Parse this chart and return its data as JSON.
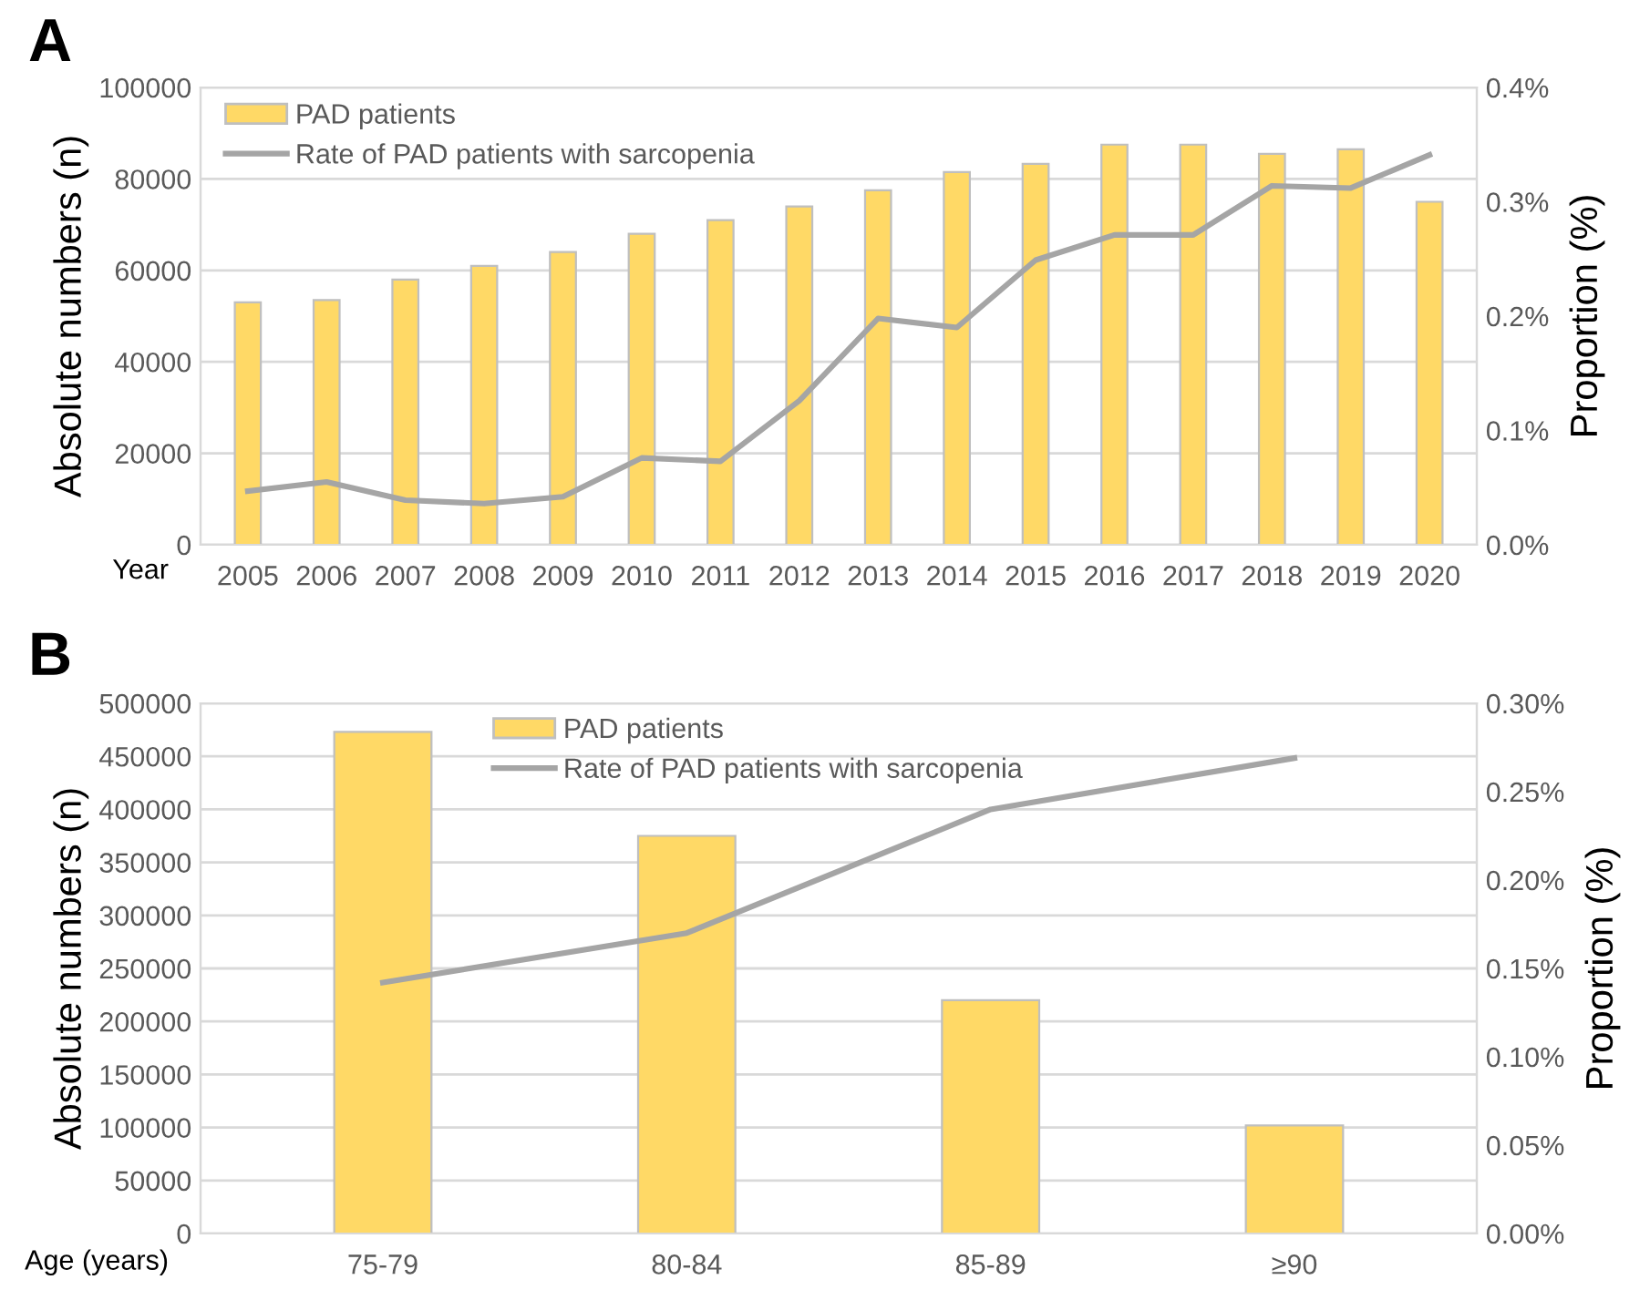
{
  "chart_data": [
    {
      "type": "bar",
      "title": "A",
      "xlabel": "Year",
      "ylabel": "Absolute numbers (n)",
      "y2label": "Proportion (%)",
      "categories": [
        "2005",
        "2006",
        "2007",
        "2008",
        "2009",
        "2010",
        "2011",
        "2012",
        "2013",
        "2014",
        "2015",
        "2016",
        "2017",
        "2018",
        "2019",
        "2020"
      ],
      "series": [
        {
          "name": "PAD patients",
          "color": "#ffd966",
          "values": [
            53000,
            53500,
            58000,
            61000,
            64000,
            68000,
            71000,
            74000,
            77500,
            81500,
            83300,
            87500,
            87500,
            85500,
            86500,
            75000
          ]
        },
        {
          "name": "Rate of PAD patients with sarcopenia",
          "type": "line",
          "axis": "y2",
          "color": "#a5a5a5",
          "values": [
            0.047,
            0.055,
            0.039,
            0.036,
            0.042,
            0.076,
            0.073,
            0.126,
            0.198,
            0.19,
            0.249,
            0.271,
            0.271,
            0.314,
            0.312,
            0.341
          ]
        }
      ],
      "ylim": [
        0,
        100000
      ],
      "yticks": [
        0,
        20000,
        40000,
        60000,
        80000,
        100000
      ],
      "y2lim": [
        0,
        0.4
      ],
      "y2ticks": [
        {
          "value": 0,
          "label": "0.0%"
        },
        {
          "value": 0.1,
          "label": "0.1%"
        },
        {
          "value": 0.2,
          "label": "0.2%"
        },
        {
          "value": 0.3,
          "label": "0.3%"
        },
        {
          "value": 0.4,
          "label": "0.4%"
        }
      ],
      "grid": "y",
      "legend": "top left",
      "marker": "none",
      "line_style": "solid"
    },
    {
      "type": "bar",
      "title": "B",
      "xlabel": "Age (years)",
      "ylabel": "Absolute numbers (n)",
      "y2label": "Proportion (%)",
      "categories": [
        "75-79",
        "80-84",
        "85-89",
        "≥90"
      ],
      "series": [
        {
          "name": "PAD patients",
          "color": "#ffd966",
          "values": [
            473000,
            375000,
            220000,
            102000
          ]
        },
        {
          "name": "Rate of PAD patients with sarcopenia",
          "type": "line",
          "axis": "y2",
          "color": "#a5a5a5",
          "values": [
            0.142,
            0.17,
            0.24,
            0.269
          ]
        }
      ],
      "ylim": [
        0,
        500000
      ],
      "yticks": [
        0,
        50000,
        100000,
        150000,
        200000,
        250000,
        300000,
        350000,
        400000,
        450000,
        500000
      ],
      "y2lim": [
        0,
        0.3
      ],
      "y2ticks": [
        {
          "value": 0,
          "label": "0.00%"
        },
        {
          "value": 0.05,
          "label": "0.05%"
        },
        {
          "value": 0.1,
          "label": "0.10%"
        },
        {
          "value": 0.15,
          "label": "0.15%"
        },
        {
          "value": 0.2,
          "label": "0.20%"
        },
        {
          "value": 0.25,
          "label": "0.25%"
        },
        {
          "value": 0.3,
          "label": "0.30%"
        }
      ],
      "grid": "y",
      "legend": "top",
      "marker": "none",
      "line_style": "solid"
    }
  ]
}
